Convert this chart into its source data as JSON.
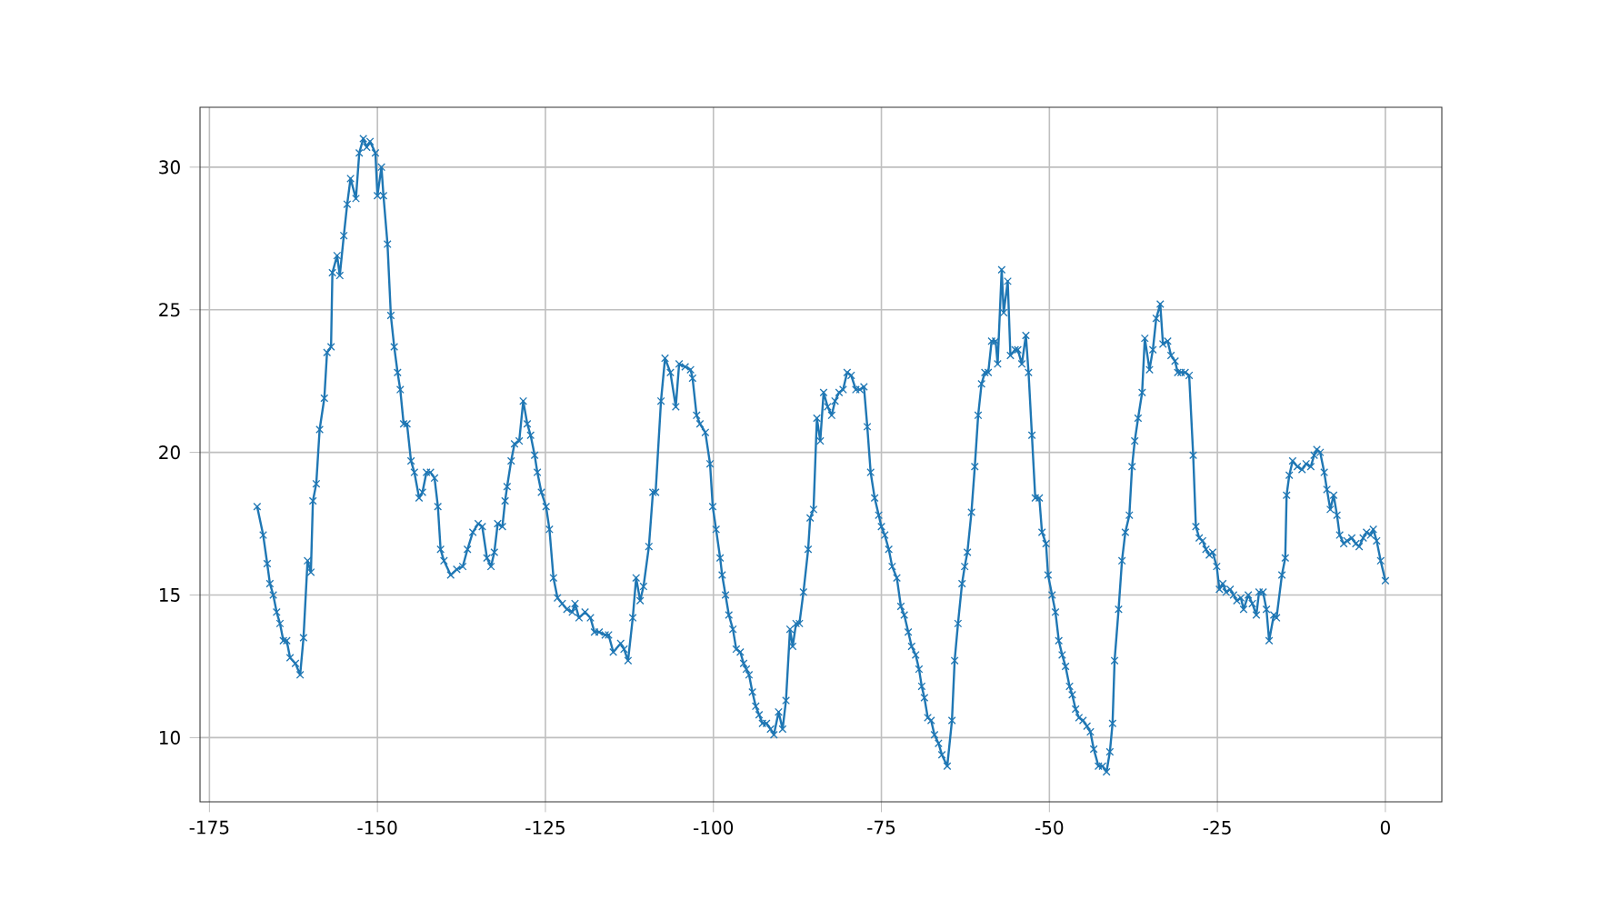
{
  "chart_data": {
    "type": "line",
    "xlim": [
      -176.4,
      8.4
    ],
    "ylim": [
      7.75,
      32.1
    ],
    "xticks": [
      -175,
      -150,
      -125,
      -100,
      -75,
      -50,
      -25,
      0
    ],
    "yticks": [
      10,
      15,
      20,
      25,
      30
    ],
    "grid": true,
    "marker": "cross",
    "line_style": "solid",
    "series": [
      {
        "color": "#1f77b4",
        "x": [
          -167.9,
          -167.0,
          -166.4,
          -166.0,
          -165.5,
          -165.0,
          -164.5,
          -164.0,
          -163.5,
          -163.0,
          -162.2,
          -161.5,
          -161.0,
          -160.4,
          -159.9,
          -159.6,
          -159.1,
          -158.6,
          -157.9,
          -157.5,
          -156.9,
          -156.7,
          -156.0,
          -155.6,
          -155.0,
          -154.5,
          -154.0,
          -153.2,
          -152.7,
          -152.1,
          -151.6,
          -151.1,
          -150.3,
          -150.0,
          -149.4,
          -149.1,
          -148.5,
          -148.0,
          -147.5,
          -147.0,
          -146.6,
          -146.1,
          -145.6,
          -145.0,
          -144.5,
          -143.8,
          -143.3,
          -142.7,
          -142.1,
          -141.5,
          -141.0,
          -140.6,
          -140.1,
          -139.1,
          -138.2,
          -137.3,
          -136.6,
          -135.8,
          -135.0,
          -134.4,
          -133.7,
          -133.1,
          -132.6,
          -132.1,
          -131.4,
          -131.0,
          -130.7,
          -130.1,
          -129.6,
          -128.9,
          -128.3,
          -127.7,
          -127.2,
          -126.6,
          -126.2,
          -125.6,
          -124.9,
          -124.4,
          -123.8,
          -123.2,
          -122.5,
          -121.8,
          -121.0,
          -120.6,
          -120.0,
          -119.1,
          -118.3,
          -117.7,
          -117.0,
          -116.1,
          -115.6,
          -114.9,
          -113.8,
          -113.3,
          -112.7,
          -112.0,
          -111.5,
          -110.9,
          -110.4,
          -109.6,
          -109.0,
          -108.6,
          -107.8,
          -107.2,
          -106.4,
          -105.6,
          -105.1,
          -104.2,
          -103.4,
          -103.1,
          -102.5,
          -102.0,
          -101.2,
          -100.5,
          -100.1,
          -99.6,
          -99.0,
          -98.7,
          -98.2,
          -97.7,
          -97.1,
          -96.6,
          -96.0,
          -95.5,
          -95.1,
          -94.7,
          -94.2,
          -93.7,
          -93.2,
          -92.7,
          -92.1,
          -91.5,
          -91.0,
          -90.3,
          -89.7,
          -89.2,
          -88.6,
          -88.2,
          -87.7,
          -87.2,
          -86.6,
          -85.9,
          -85.6,
          -85.1,
          -84.6,
          -84.1,
          -83.6,
          -83.0,
          -82.4,
          -81.9,
          -81.3,
          -80.7,
          -80.1,
          -79.5,
          -78.8,
          -78.2,
          -77.6,
          -77.1,
          -76.6,
          -76.0,
          -75.4,
          -75.0,
          -74.5,
          -73.9,
          -73.4,
          -72.7,
          -72.1,
          -71.6,
          -71.0,
          -70.5,
          -69.9,
          -69.4,
          -69.0,
          -68.6,
          -68.1,
          -67.6,
          -67.1,
          -66.5,
          -66.0,
          -65.2,
          -64.5,
          -64.1,
          -63.6,
          -63.0,
          -62.6,
          -62.2,
          -61.6,
          -61.1,
          -60.6,
          -60.1,
          -59.6,
          -59.1,
          -58.6,
          -58.0,
          -57.7,
          -57.1,
          -56.8,
          -56.2,
          -55.8,
          -55.1,
          -54.7,
          -54.1,
          -53.5,
          -53.1,
          -52.6,
          -52.1,
          -51.5,
          -51.1,
          -50.5,
          -50.2,
          -49.6,
          -49.1,
          -48.6,
          -48.1,
          -47.6,
          -47.0,
          -46.6,
          -46.1,
          -45.6,
          -45.0,
          -44.4,
          -43.9,
          -43.4,
          -42.7,
          -42.1,
          -41.5,
          -41.0,
          -40.6,
          -40.3,
          -39.7,
          -39.2,
          -38.7,
          -38.1,
          -37.7,
          -37.3,
          -36.8,
          -36.2,
          -35.8,
          -35.1,
          -34.6,
          -34.1,
          -33.5,
          -33.1,
          -32.4,
          -31.9,
          -31.3,
          -30.9,
          -30.4,
          -29.8,
          -29.2,
          -28.6,
          -28.2,
          -27.7,
          -27.2,
          -26.7,
          -26.2,
          -25.7,
          -25.1,
          -24.7,
          -24.2,
          -23.7,
          -23.1,
          -22.6,
          -22.1,
          -21.5,
          -21.1,
          -20.4,
          -19.8,
          -19.2,
          -18.8,
          -18.2,
          -17.7,
          -17.3,
          -16.6,
          -16.2,
          -15.4,
          -14.9,
          -14.7,
          -14.3,
          -13.8,
          -13.1,
          -12.4,
          -11.8,
          -11.1,
          -10.6,
          -10.2,
          -9.7,
          -9.1,
          -8.7,
          -8.2,
          -7.7,
          -7.2,
          -6.8,
          -6.2,
          -5.7,
          -5.0,
          -4.4,
          -3.9,
          -3.3,
          -2.8,
          -2.2,
          -1.8,
          -1.3,
          -0.7,
          0.0
        ],
        "values": [
          18.1,
          17.1,
          16.1,
          15.4,
          15.0,
          14.4,
          14.0,
          13.4,
          13.4,
          12.8,
          12.6,
          12.2,
          13.5,
          16.2,
          15.8,
          18.3,
          18.9,
          20.8,
          21.9,
          23.5,
          23.7,
          26.3,
          26.9,
          26.2,
          27.6,
          28.7,
          29.6,
          28.9,
          30.5,
          31.0,
          30.7,
          30.9,
          30.5,
          29.0,
          30.0,
          29.0,
          27.3,
          24.8,
          23.7,
          22.8,
          22.2,
          21.0,
          21.0,
          19.7,
          19.3,
          18.4,
          18.6,
          19.3,
          19.3,
          19.1,
          18.1,
          16.6,
          16.2,
          15.7,
          15.9,
          16.0,
          16.6,
          17.2,
          17.5,
          17.4,
          16.3,
          16.0,
          16.5,
          17.5,
          17.4,
          18.3,
          18.8,
          19.7,
          20.3,
          20.4,
          21.8,
          21.0,
          20.6,
          19.9,
          19.3,
          18.6,
          18.1,
          17.3,
          15.6,
          14.9,
          14.7,
          14.5,
          14.4,
          14.7,
          14.2,
          14.4,
          14.2,
          13.7,
          13.7,
          13.6,
          13.6,
          13.0,
          13.3,
          13.1,
          12.7,
          14.2,
          15.6,
          14.8,
          15.3,
          16.7,
          18.6,
          18.6,
          21.8,
          23.3,
          22.8,
          21.6,
          23.1,
          23.0,
          22.9,
          22.6,
          21.3,
          21.0,
          20.7,
          19.6,
          18.1,
          17.3,
          16.3,
          15.7,
          15.0,
          14.3,
          13.8,
          13.1,
          13.0,
          12.6,
          12.4,
          12.2,
          11.6,
          11.1,
          10.8,
          10.5,
          10.5,
          10.3,
          10.1,
          10.9,
          10.3,
          11.3,
          13.8,
          13.2,
          14.0,
          14.0,
          15.1,
          16.6,
          17.7,
          18.0,
          21.2,
          20.4,
          22.1,
          21.6,
          21.3,
          21.8,
          22.1,
          22.2,
          22.8,
          22.7,
          22.2,
          22.2,
          22.3,
          20.9,
          19.3,
          18.4,
          17.8,
          17.4,
          17.1,
          16.6,
          16.0,
          15.6,
          14.6,
          14.3,
          13.7,
          13.2,
          12.9,
          12.4,
          11.8,
          11.4,
          10.7,
          10.6,
          10.1,
          9.8,
          9.4,
          9.0,
          10.6,
          12.7,
          14.0,
          15.4,
          16.0,
          16.5,
          17.9,
          19.5,
          21.3,
          22.4,
          22.8,
          22.8,
          23.9,
          23.9,
          23.1,
          26.4,
          24.9,
          26.0,
          23.4,
          23.6,
          23.6,
          23.1,
          24.1,
          22.8,
          20.6,
          18.4,
          18.4,
          17.2,
          16.8,
          15.7,
          15.0,
          14.4,
          13.4,
          12.9,
          12.5,
          11.8,
          11.5,
          11.0,
          10.7,
          10.6,
          10.4,
          10.2,
          9.6,
          9.0,
          9.0,
          8.8,
          9.5,
          10.5,
          12.7,
          14.5,
          16.2,
          17.2,
          17.8,
          19.5,
          20.4,
          21.2,
          22.1,
          24.0,
          22.9,
          23.6,
          24.7,
          25.2,
          23.8,
          23.9,
          23.4,
          23.2,
          22.8,
          22.8,
          22.8,
          22.7,
          19.9,
          17.4,
          17.0,
          16.9,
          16.6,
          16.4,
          16.5,
          16.0,
          15.2,
          15.4,
          15.1,
          15.2,
          15.0,
          14.8,
          14.9,
          14.5,
          15.0,
          14.7,
          14.3,
          15.1,
          15.1,
          14.5,
          13.4,
          14.3,
          14.2,
          15.7,
          16.3,
          18.5,
          19.2,
          19.7,
          19.5,
          19.4,
          19.6,
          19.5,
          19.9,
          20.1,
          20.0,
          19.3,
          18.7,
          18.0,
          18.5,
          17.8,
          17.1,
          16.8,
          16.9,
          17.0,
          16.8,
          16.7,
          17.0,
          17.2,
          17.1,
          17.3,
          16.9,
          16.2,
          15.5
        ]
      }
    ]
  }
}
